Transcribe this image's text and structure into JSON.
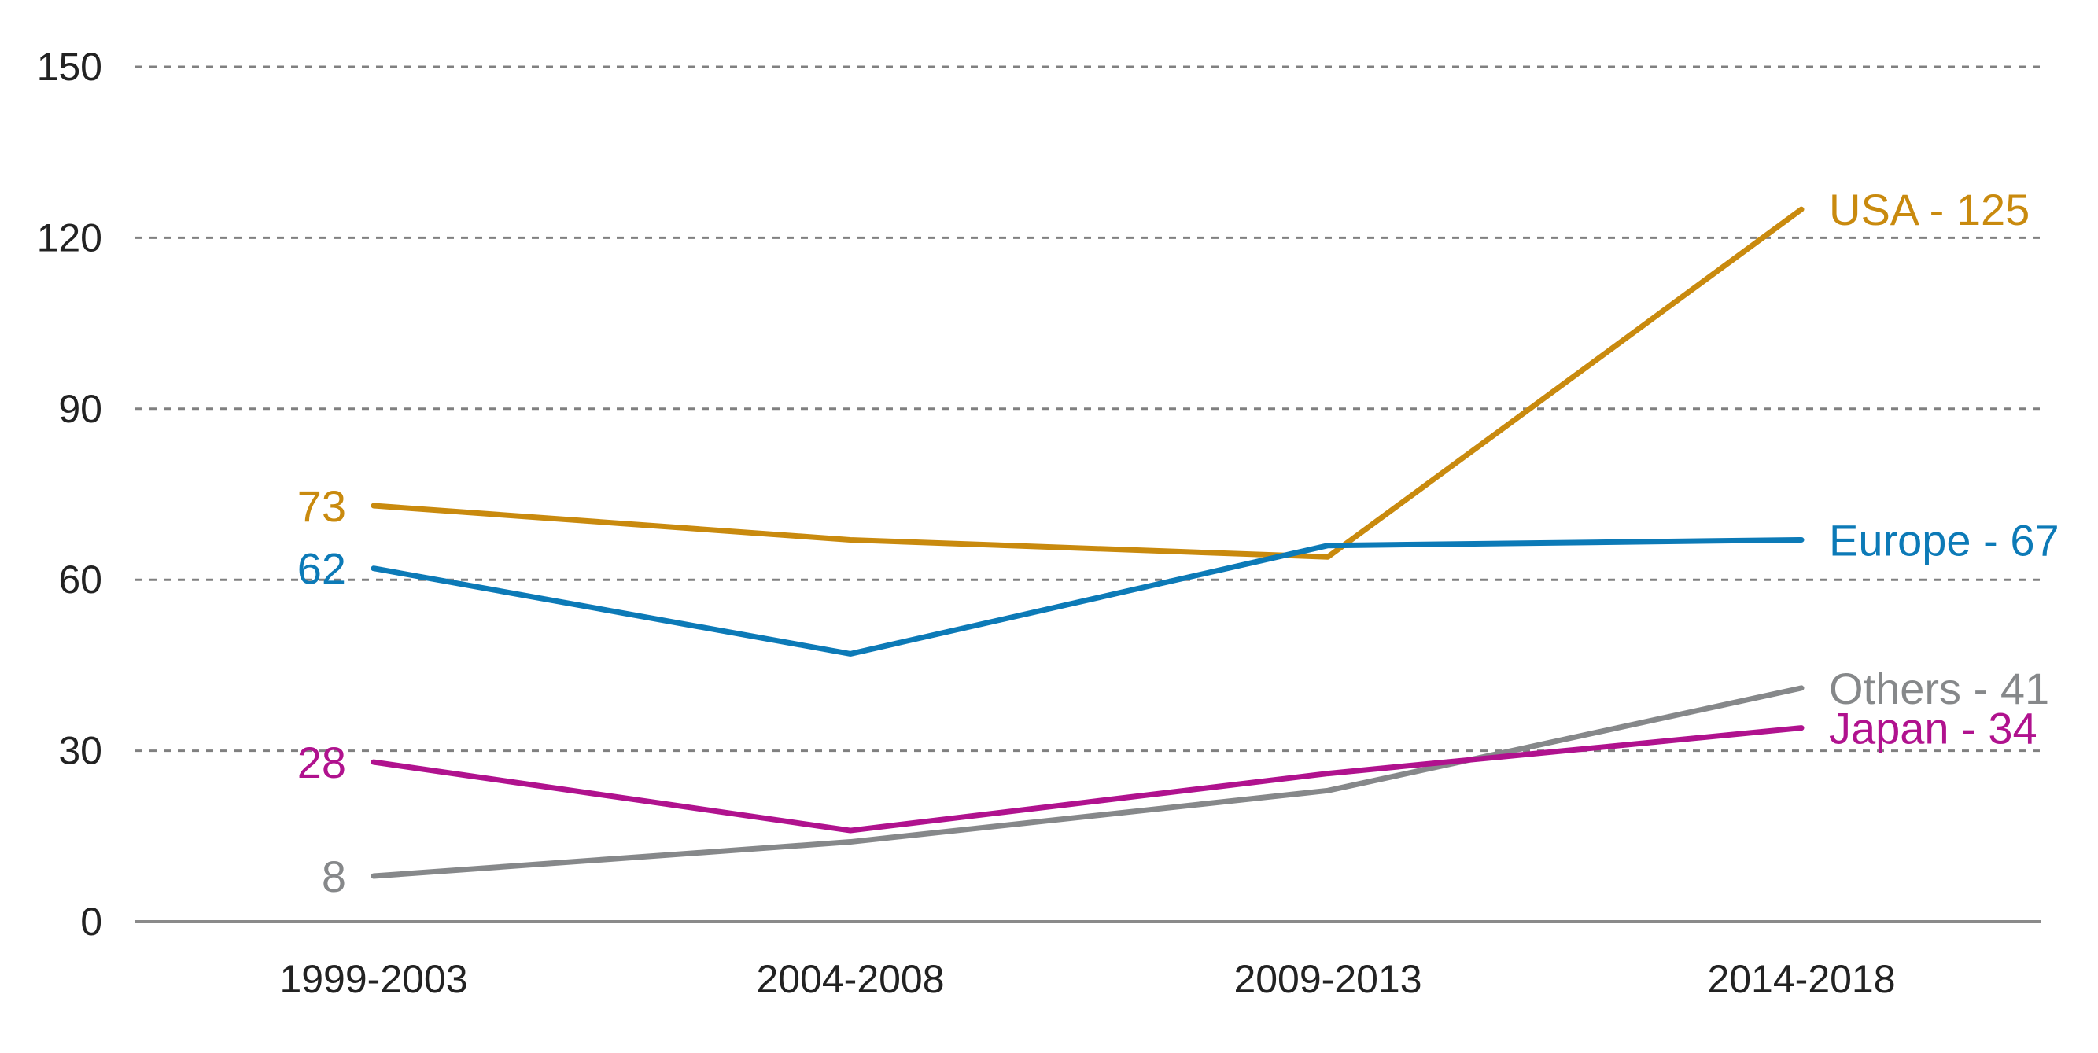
{
  "chart_data": {
    "type": "line",
    "categories": [
      "1999-2003",
      "2004-2008",
      "2009-2013",
      "2014-2018"
    ],
    "ylim": [
      0,
      150
    ],
    "yticks": [
      0,
      30,
      60,
      90,
      120,
      150
    ],
    "ytick_labels": [
      "0",
      "30",
      "60",
      "90",
      "120",
      "150"
    ],
    "grid": true,
    "series": [
      {
        "name": "USA",
        "values": [
          73,
          67,
          64,
          125
        ],
        "color": "#C98A0E",
        "start_label": "73",
        "end_label": "USA - 125"
      },
      {
        "name": "Europe",
        "values": [
          62,
          47,
          66,
          67
        ],
        "color": "#0C7AB7",
        "start_label": "62",
        "end_label": "Europe - 67"
      },
      {
        "name": "Others",
        "values": [
          8,
          14,
          23,
          41
        ],
        "color": "#86888A",
        "start_label": "8",
        "end_label": "Others - 41"
      },
      {
        "name": "Japan",
        "values": [
          28,
          16,
          26,
          34
        ],
        "color": "#B0128E",
        "start_label": "28",
        "end_label": "Japan - 34"
      }
    ]
  }
}
